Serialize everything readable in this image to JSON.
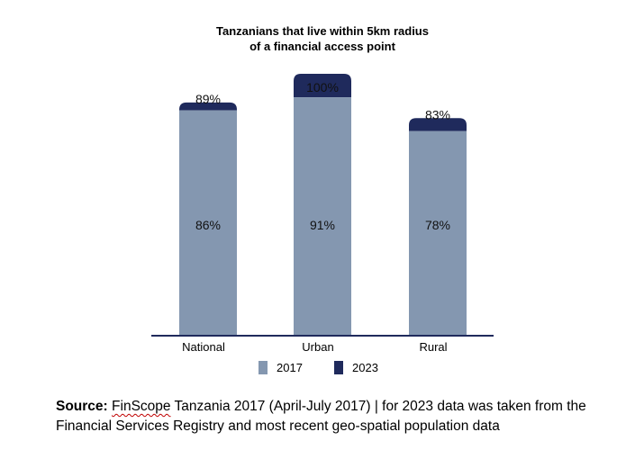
{
  "chart_data": {
    "type": "bar",
    "title_lines": [
      "Tanzanians that live within 5km radius",
      "of a financial access point"
    ],
    "categories": [
      "National",
      "Urban",
      "Rural"
    ],
    "series": [
      {
        "name": "2017",
        "values": [
          86,
          91,
          78
        ],
        "labels": [
          "86%",
          "91%",
          "78%"
        ],
        "color": "#8497b0"
      },
      {
        "name": "2023",
        "values": [
          89,
          100,
          83
        ],
        "labels": [
          "89%",
          "100%",
          "83%"
        ],
        "color": "#1f2a5c"
      }
    ],
    "ylim": [
      0,
      100
    ],
    "grid": false,
    "legend_position": "bottom"
  },
  "source": {
    "label": "Source:",
    "org": "FinScope",
    "text": " Tanzania 2017 (April-July 2017) | for 2023 data was taken from the Financial Services Registry and most recent geo-spatial population data"
  }
}
